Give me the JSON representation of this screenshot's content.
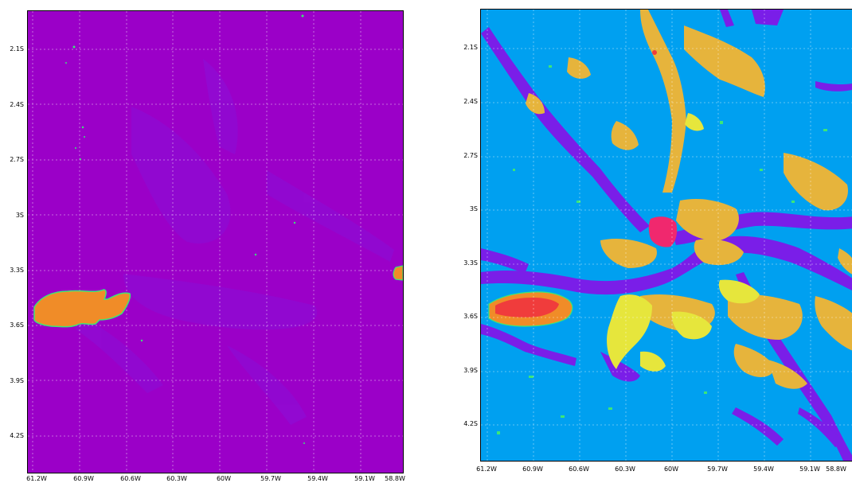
{
  "panels": [
    {
      "name": "left",
      "y_ticks": [
        "2.1S",
        "2.4S",
        "2.7S",
        "3S",
        "3.3S",
        "3.6S",
        "3.9S",
        "4.2S"
      ],
      "x_ticks": [
        "61.2W",
        "60.9W",
        "60.6W",
        "60.3W",
        "60W",
        "59.7W",
        "59.4W",
        "59.1W",
        "58.8W"
      ],
      "background_color": "#9b00c8"
    },
    {
      "name": "right",
      "y_ticks": [
        "2.1S",
        "2.4S",
        "2.7S",
        "3S",
        "3.3S",
        "3.6S",
        "3.9S",
        "4.2S"
      ],
      "x_ticks": [
        "61.2W",
        "60.9W",
        "60.6W",
        "60.3W",
        "60W",
        "59.7W",
        "59.4W",
        "59.1W",
        "58.8W"
      ],
      "background_color": "#00a0f0"
    }
  ],
  "colors": {
    "purple": "#9b00c8",
    "violet": "#7a1ee8",
    "blue": "#00a0f0",
    "orange": "#f08c28",
    "gold": "#e6b43c",
    "yellow": "#e6e63c",
    "green": "#3ce678",
    "red": "#f03c3c",
    "pink": "#f0286e"
  }
}
